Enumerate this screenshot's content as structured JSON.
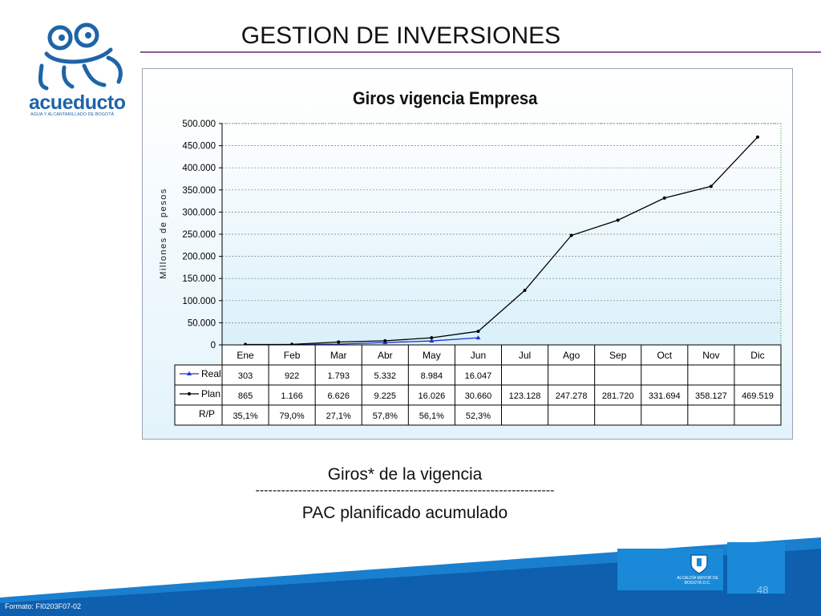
{
  "slide": {
    "title": "GESTION DE INVERSIONES",
    "logo_text": "acueducto",
    "logo_subtitle": "AGUA Y ALCANTARILLADO DE BOGOTÁ",
    "caption_top": "Giros* de la vigencia",
    "caption_divider": "----------------------------------------------------------------------",
    "caption_bottom": "PAC planificado acumulado",
    "footer_format": "Formato: FI0203F07-02",
    "page_number": "48",
    "seal_label": "ALCALDÍA MAYOR DE BOGOTÁ D.C.",
    "colors": {
      "accent_rule": "#8a5a98",
      "brand_blue": "#1f64a8",
      "footer_blue": "#1a8ad8"
    }
  },
  "chart_data": {
    "type": "line",
    "title": "Giros vigencia Empresa",
    "ylabel": "Millones de pesos",
    "xlabel": "",
    "ylim": [
      0,
      500000
    ],
    "yticks": [
      0,
      50000,
      100000,
      150000,
      200000,
      250000,
      300000,
      350000,
      400000,
      450000,
      500000
    ],
    "ytick_labels": [
      "0",
      "50.000",
      "100.000",
      "150.000",
      "200.000",
      "250.000",
      "300.000",
      "350.000",
      "400.000",
      "450.000",
      "500.000"
    ],
    "grid": true,
    "categories": [
      "Ene",
      "Feb",
      "Mar",
      "Abr",
      "May",
      "Jun",
      "Jul",
      "Ago",
      "Sep",
      "Oct",
      "Nov",
      "Dic"
    ],
    "series": [
      {
        "name": "Real",
        "color": "#2233cc",
        "marker": "triangle",
        "values": [
          303,
          922,
          1793,
          5332,
          8984,
          16047,
          null,
          null,
          null,
          null,
          null,
          null
        ],
        "labels": [
          "303",
          "922",
          "1.793",
          "5.332",
          "8.984",
          "16.047",
          "",
          "",
          "",
          "",
          "",
          ""
        ]
      },
      {
        "name": "Plan",
        "color": "#000000",
        "marker": "circle",
        "values": [
          865,
          1166,
          6626,
          9225,
          16026,
          30660,
          123128,
          247278,
          281720,
          331694,
          358127,
          469519
        ],
        "labels": [
          "865",
          "1.166",
          "6.626",
          "9.225",
          "16.026",
          "30.660",
          "123.128",
          "247.278",
          "281.720",
          "331.694",
          "358.127",
          "469.519"
        ]
      }
    ],
    "table_rows": [
      {
        "name": "R/P",
        "labels": [
          "35,1%",
          "79,0%",
          "27,1%",
          "57,8%",
          "56,1%",
          "52,3%",
          "",
          "",
          "",
          "",
          "",
          ""
        ]
      }
    ]
  }
}
